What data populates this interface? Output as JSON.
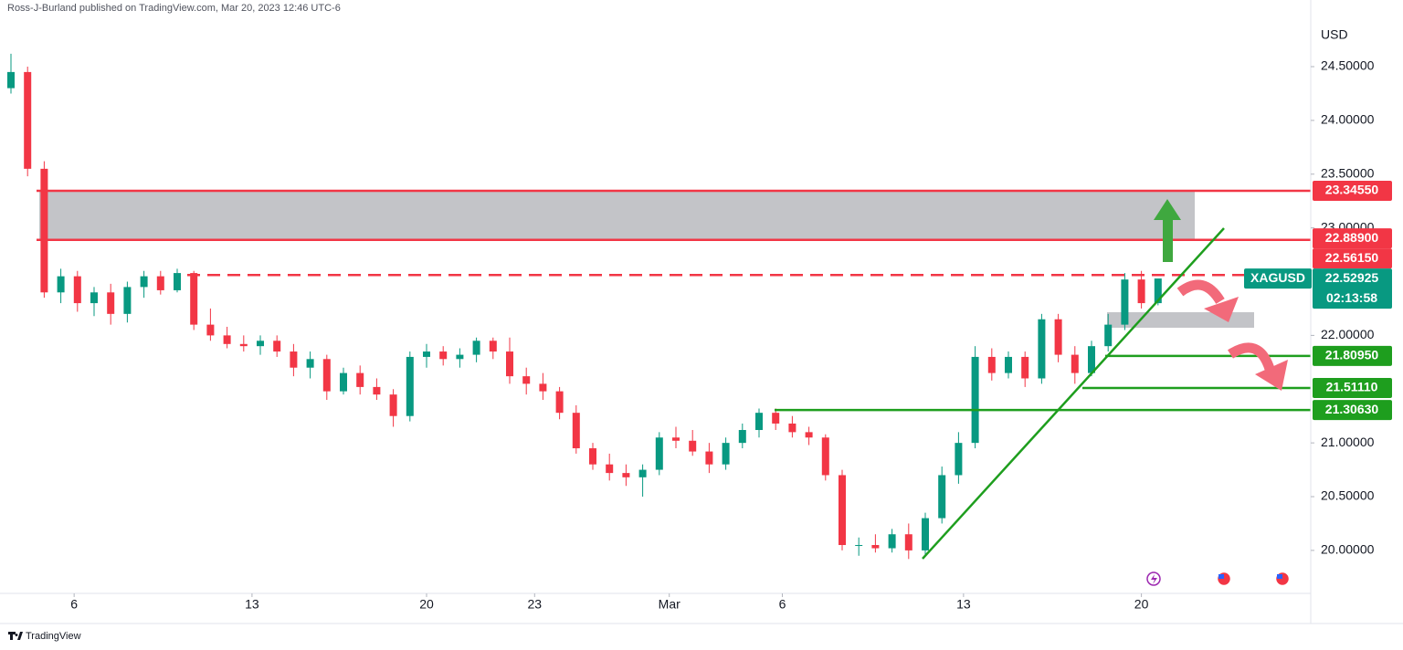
{
  "header": "Ross-J-Burland published on TradingView.com, Mar 20, 2023 12:46 UTC-6",
  "footer": "TradingView",
  "chart_data": {
    "type": "candlestick",
    "currency": "USD",
    "up_color": "#089981",
    "down_color": "#f23645",
    "open": [
      24.3,
      24.45,
      23.55,
      22.4,
      22.55,
      22.3,
      22.4,
      22.2,
      22.45,
      22.55,
      22.42,
      22.58,
      22.1,
      22.0,
      21.92,
      21.9,
      21.95,
      21.85,
      21.7,
      21.78,
      21.48,
      21.65,
      21.52,
      21.45,
      21.25,
      21.8,
      21.85,
      21.78,
      21.82,
      21.95,
      21.85,
      21.62,
      21.55,
      21.48,
      21.28,
      20.95,
      20.8,
      20.72,
      20.68,
      20.75,
      21.05,
      21.02,
      20.92,
      20.8,
      21.0,
      21.12,
      21.28,
      21.18,
      21.1,
      21.05,
      20.7,
      20.05,
      20.05,
      20.02,
      20.15,
      20.0,
      20.3,
      20.7,
      21.0,
      21.8,
      21.65,
      21.8,
      21.6,
      22.15,
      21.82,
      21.65,
      21.9,
      22.1,
      22.52,
      22.3
    ],
    "high": [
      24.62,
      24.5,
      23.62,
      22.62,
      22.6,
      22.45,
      22.48,
      22.5,
      22.6,
      22.6,
      22.62,
      22.6,
      22.25,
      22.08,
      22.0,
      22.0,
      22.0,
      21.92,
      21.85,
      21.82,
      21.7,
      21.72,
      21.6,
      21.5,
      21.85,
      21.92,
      21.9,
      21.88,
      21.98,
      21.98,
      21.98,
      21.7,
      21.65,
      21.52,
      21.35,
      21.0,
      20.9,
      20.8,
      20.8,
      21.1,
      21.15,
      21.12,
      21.0,
      21.05,
      21.18,
      21.32,
      21.32,
      21.25,
      21.15,
      21.08,
      20.75,
      20.12,
      20.15,
      20.2,
      20.25,
      20.35,
      20.78,
      21.1,
      21.9,
      21.88,
      21.85,
      21.85,
      22.2,
      22.2,
      21.9,
      21.95,
      22.2,
      22.58,
      22.6,
      22.5
    ],
    "low": [
      24.25,
      23.48,
      22.35,
      22.3,
      22.22,
      22.18,
      22.1,
      22.12,
      22.35,
      22.38,
      22.4,
      22.05,
      21.95,
      21.88,
      21.85,
      21.82,
      21.8,
      21.62,
      21.6,
      21.4,
      21.45,
      21.45,
      21.4,
      21.15,
      21.2,
      21.7,
      21.72,
      21.7,
      21.75,
      21.78,
      21.55,
      21.45,
      21.4,
      21.22,
      20.9,
      20.75,
      20.65,
      20.6,
      20.5,
      20.7,
      20.95,
      20.88,
      20.72,
      20.75,
      20.95,
      21.05,
      21.12,
      21.05,
      20.98,
      20.65,
      20.0,
      19.95,
      19.98,
      19.98,
      19.92,
      19.95,
      20.25,
      20.62,
      20.95,
      21.58,
      21.6,
      21.52,
      21.55,
      21.75,
      21.55,
      21.62,
      21.85,
      22.05,
      22.25,
      22.28
    ],
    "close": [
      24.45,
      23.55,
      22.4,
      22.55,
      22.3,
      22.4,
      22.2,
      22.45,
      22.55,
      22.42,
      22.58,
      22.1,
      22.0,
      21.92,
      21.9,
      21.95,
      21.85,
      21.7,
      21.78,
      21.48,
      21.65,
      21.52,
      21.45,
      21.25,
      21.8,
      21.85,
      21.78,
      21.82,
      21.95,
      21.85,
      21.62,
      21.55,
      21.48,
      21.28,
      20.95,
      20.8,
      20.72,
      20.68,
      20.75,
      21.05,
      21.02,
      20.92,
      20.8,
      21.0,
      21.12,
      21.28,
      21.18,
      21.1,
      21.05,
      20.7,
      20.05,
      20.05,
      20.02,
      20.15,
      20.0,
      20.3,
      20.7,
      21.0,
      21.8,
      21.65,
      21.8,
      21.6,
      22.15,
      21.82,
      21.65,
      21.9,
      22.1,
      22.52,
      22.3,
      22.52925
    ],
    "xticks": [
      {
        "value": 3.8,
        "label": "6"
      },
      {
        "value": 14.5,
        "label": "13"
      },
      {
        "value": 25.0,
        "label": "20"
      },
      {
        "value": 31.5,
        "label": "23"
      },
      {
        "value": 39.6,
        "label": "Mar"
      },
      {
        "value": 46.4,
        "label": "6"
      },
      {
        "value": 57.3,
        "label": "13"
      },
      {
        "value": 68.0,
        "label": "20"
      }
    ],
    "ylim": [
      19.6,
      25.12
    ],
    "yticks": [
      {
        "value": 24.5,
        "label": "24.50000"
      },
      {
        "value": 24.0,
        "label": "24.00000"
      },
      {
        "value": 23.5,
        "label": "23.50000"
      },
      {
        "value": 23.0,
        "label": "23.00000"
      },
      {
        "value": 22.0,
        "label": "22.00000"
      },
      {
        "value": 21.0,
        "label": "21.00000"
      },
      {
        "value": 20.5,
        "label": "20.50000"
      },
      {
        "value": 20.0,
        "label": "20.00000"
      }
    ],
    "levels": [
      {
        "value": 23.3455,
        "label": "23.34550",
        "color": "#f23645"
      },
      {
        "value": 22.889,
        "label": "22.88900",
        "color": "#f23645"
      },
      {
        "value": 22.5615,
        "label": "22.56150",
        "color": "#f23645"
      },
      {
        "value": 22.52925,
        "label": "22.52925",
        "color": "#089981",
        "symbol": "XAGUSD",
        "countdown": "02:13:58"
      },
      {
        "value": 21.8095,
        "label": "21.80950",
        "color": "#1e9e1e"
      },
      {
        "value": 21.5111,
        "label": "21.51110",
        "color": "#1e9e1e"
      },
      {
        "value": 21.3063,
        "label": "21.30630",
        "color": "#1e9e1e"
      }
    ]
  }
}
